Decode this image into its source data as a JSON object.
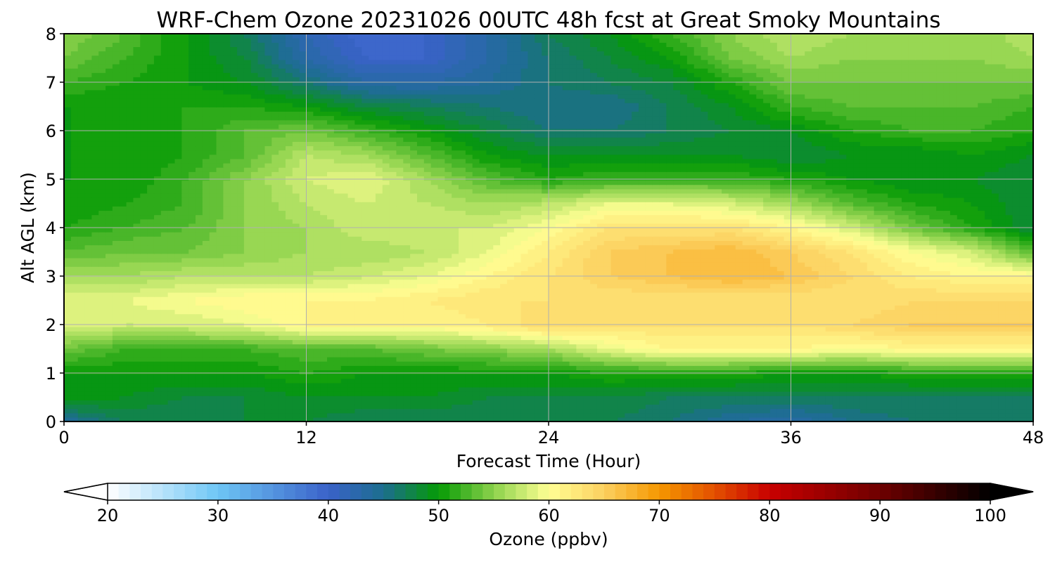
{
  "chart_data": {
    "type": "heatmap",
    "title": "WRF-Chem Ozone  20231026 00UTC 48h fcst at Great Smoky Mountains",
    "xlabel": "Forecast Time (Hour)",
    "ylabel": "Alt AGL (km)",
    "xlim": [
      0,
      48
    ],
    "ylim": [
      0,
      8
    ],
    "xticks": [
      "0",
      "12",
      "24",
      "36",
      "48"
    ],
    "yticks": [
      "0",
      "1",
      "2",
      "3",
      "4",
      "5",
      "6",
      "7",
      "8"
    ],
    "grid": true,
    "x": [
      0,
      3,
      6,
      9,
      12,
      15,
      18,
      21,
      24,
      27,
      30,
      33,
      36,
      39,
      42,
      45,
      48
    ],
    "y": [
      0,
      0.5,
      1,
      1.5,
      2,
      2.5,
      3,
      3.5,
      4,
      4.5,
      5,
      5.5,
      6,
      6.5,
      7,
      7.5,
      8
    ],
    "z": [
      [
        44,
        47,
        47,
        48,
        48,
        47,
        47,
        47,
        47,
        47,
        46,
        44,
        43,
        45,
        46,
        46,
        46
      ],
      [
        50,
        49,
        48,
        48,
        49,
        49,
        49,
        48,
        48,
        48,
        47,
        47,
        47,
        47,
        47,
        47,
        47
      ],
      [
        50,
        50,
        50,
        50,
        51,
        50,
        50,
        50,
        50,
        51,
        51,
        51,
        50,
        50,
        51,
        51,
        51
      ],
      [
        54,
        52,
        52,
        52,
        53,
        53,
        54,
        55,
        56,
        59,
        61,
        61,
        61,
        60,
        61,
        61,
        61
      ],
      [
        58,
        58,
        58,
        59,
        61,
        61,
        61,
        62,
        64,
        63,
        63,
        63,
        63,
        64,
        65,
        65,
        65
      ],
      [
        59,
        59,
        60,
        61,
        61,
        61,
        62,
        63,
        63,
        63,
        63,
        63,
        63,
        63,
        64,
        64,
        64
      ],
      [
        56,
        56,
        57,
        57,
        57,
        58,
        59,
        61,
        63,
        65,
        66,
        67,
        66,
        64,
        62,
        61,
        61
      ],
      [
        53,
        54,
        54,
        55,
        56,
        56,
        57,
        59,
        62,
        65,
        66,
        67,
        65,
        63,
        60,
        58,
        53
      ],
      [
        51,
        52,
        53,
        55,
        56,
        58,
        58,
        58,
        60,
        63,
        63,
        63,
        61,
        58,
        54,
        51,
        48
      ],
      [
        50,
        51,
        52,
        55,
        57,
        58,
        57,
        56,
        57,
        59,
        59,
        58,
        56,
        53,
        51,
        50,
        48
      ],
      [
        50,
        50,
        52,
        55,
        58,
        59,
        56,
        53,
        51,
        52,
        52,
        52,
        51,
        50,
        49,
        49,
        48
      ],
      [
        50,
        50,
        51,
        53,
        57,
        56,
        53,
        50,
        49,
        49,
        49,
        49,
        48,
        49,
        49,
        50,
        49
      ],
      [
        50,
        50,
        51,
        53,
        54,
        52,
        50,
        48,
        46,
        46,
        47,
        48,
        49,
        51,
        52,
        52,
        51
      ],
      [
        50,
        50,
        51,
        51,
        50,
        48,
        47,
        46,
        45,
        45,
        47,
        49,
        52,
        53,
        53,
        53,
        52
      ],
      [
        52,
        51,
        50,
        49,
        46,
        43,
        43,
        44,
        46,
        47,
        48,
        51,
        54,
        54,
        54,
        54,
        54
      ],
      [
        54,
        52,
        50,
        48,
        43,
        40,
        40,
        43,
        46,
        48,
        50,
        54,
        56,
        55,
        55,
        55,
        56
      ],
      [
        55,
        53,
        50,
        47,
        42,
        39,
        40,
        43,
        47,
        49,
        52,
        55,
        57,
        56,
        55,
        55,
        57
      ]
    ],
    "colorbar": {
      "label": "Ozone  (ppbv)",
      "min": 20,
      "max": 100,
      "extend": "both",
      "ticks": [
        "20",
        "30",
        "40",
        "50",
        "60",
        "70",
        "80",
        "90",
        "100"
      ],
      "stops": [
        {
          "v": 20,
          "c": "#ffffff"
        },
        {
          "v": 30,
          "c": "#6ec6f5"
        },
        {
          "v": 40,
          "c": "#3a62c9"
        },
        {
          "v": 45,
          "c": "#1c6e8e"
        },
        {
          "v": 50,
          "c": "#059a05"
        },
        {
          "v": 55,
          "c": "#8cd24c"
        },
        {
          "v": 60,
          "c": "#ffff94"
        },
        {
          "v": 65,
          "c": "#fcd060"
        },
        {
          "v": 70,
          "c": "#f59700"
        },
        {
          "v": 75,
          "c": "#e35000"
        },
        {
          "v": 80,
          "c": "#c80000"
        },
        {
          "v": 90,
          "c": "#6e0000"
        },
        {
          "v": 100,
          "c": "#000000"
        }
      ]
    }
  }
}
